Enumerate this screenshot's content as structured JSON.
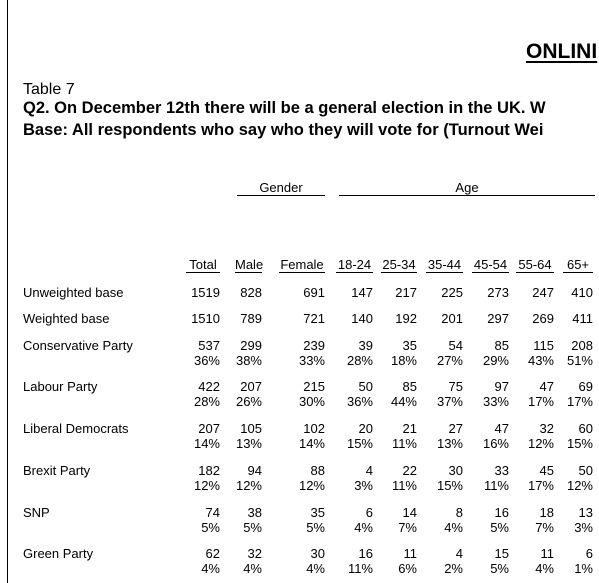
{
  "banner": "ONLINI",
  "table_label": "Table 7",
  "question": "Q2. On December 12th there will be a general election in the UK. W",
  "base": "Base: All respondents who say who they will vote for (Turnout Wei",
  "groups": [
    {
      "label": "Gender"
    },
    {
      "label": "Age"
    }
  ],
  "columns": [
    "Total",
    "Male",
    "Female",
    "18-24",
    "25-34",
    "35-44",
    "45-54",
    "55-64",
    "65+"
  ],
  "rows": [
    {
      "label": "Unweighted base",
      "counts": [
        "1519",
        "828",
        "691",
        "147",
        "217",
        "225",
        "273",
        "247",
        "410"
      ],
      "pcts": []
    },
    {
      "label": "Weighted base",
      "counts": [
        "1510",
        "789",
        "721",
        "140",
        "192",
        "201",
        "297",
        "269",
        "411"
      ],
      "pcts": []
    },
    {
      "label": "Conservative Party",
      "counts": [
        "537",
        "299",
        "239",
        "39",
        "35",
        "54",
        "85",
        "115",
        "208"
      ],
      "pcts": [
        "36%",
        "38%",
        "33%",
        "28%",
        "18%",
        "27%",
        "29%",
        "43%",
        "51%"
      ]
    },
    {
      "label": "Labour Party",
      "counts": [
        "422",
        "207",
        "215",
        "50",
        "85",
        "75",
        "97",
        "47",
        "69"
      ],
      "pcts": [
        "28%",
        "26%",
        "30%",
        "36%",
        "44%",
        "37%",
        "33%",
        "17%",
        "17%"
      ]
    },
    {
      "label": "Liberal Democrats",
      "counts": [
        "207",
        "105",
        "102",
        "20",
        "21",
        "27",
        "47",
        "32",
        "60"
      ],
      "pcts": [
        "14%",
        "13%",
        "14%",
        "15%",
        "11%",
        "13%",
        "16%",
        "12%",
        "15%"
      ]
    },
    {
      "label": "Brexit Party",
      "counts": [
        "182",
        "94",
        "88",
        "4",
        "22",
        "30",
        "33",
        "45",
        "50"
      ],
      "pcts": [
        "12%",
        "12%",
        "12%",
        "3%",
        "11%",
        "15%",
        "11%",
        "17%",
        "12%"
      ]
    },
    {
      "label": "SNP",
      "counts": [
        "74",
        "38",
        "35",
        "6",
        "14",
        "8",
        "16",
        "18",
        "13"
      ],
      "pcts": [
        "5%",
        "5%",
        "5%",
        "4%",
        "7%",
        "4%",
        "5%",
        "7%",
        "3%"
      ]
    },
    {
      "label": "Green Party",
      "counts": [
        "62",
        "32",
        "30",
        "16",
        "11",
        "4",
        "15",
        "11",
        "6"
      ],
      "pcts": [
        "4%",
        "4%",
        "4%",
        "11%",
        "6%",
        "2%",
        "5%",
        "4%",
        "1%"
      ]
    }
  ]
}
